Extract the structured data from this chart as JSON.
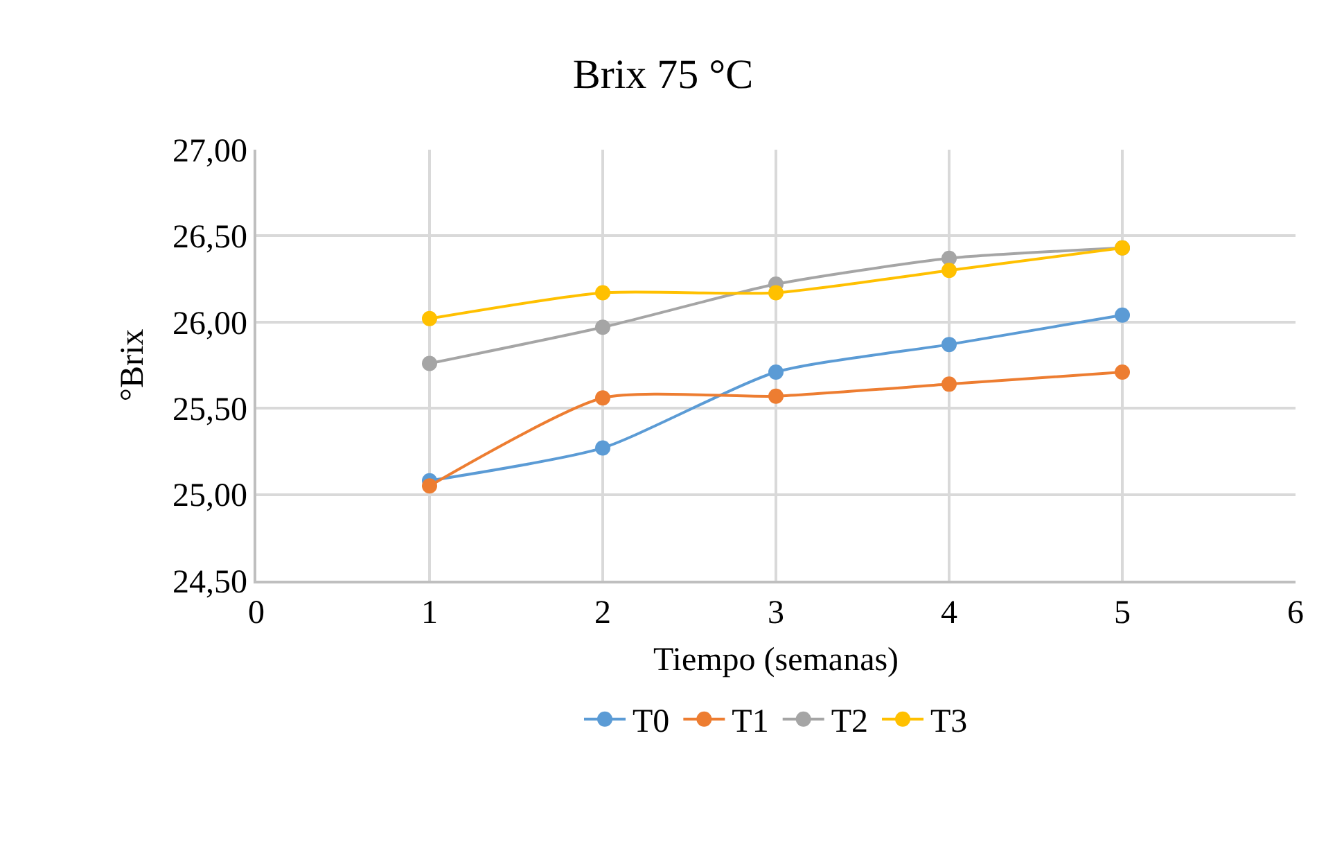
{
  "chart_data": {
    "type": "line",
    "title": "Brix 75 °C",
    "xlabel": "Tiempo (semanas)",
    "ylabel": "°Brix",
    "x": [
      1,
      2,
      3,
      4,
      5
    ],
    "series": [
      {
        "name": "T0",
        "color": "#5b9bd5",
        "values": [
          25.08,
          25.27,
          25.71,
          25.87,
          26.04
        ]
      },
      {
        "name": "T1",
        "color": "#ed7d31",
        "values": [
          25.05,
          25.56,
          25.57,
          25.64,
          25.71
        ]
      },
      {
        "name": "T2",
        "color": "#a5a5a5",
        "values": [
          25.76,
          25.97,
          26.22,
          26.37,
          26.43
        ]
      },
      {
        "name": "T3",
        "color": "#ffc000",
        "values": [
          26.02,
          26.17,
          26.17,
          26.3,
          26.43
        ]
      }
    ],
    "xlim": [
      0,
      6
    ],
    "xticks": [
      0,
      1,
      2,
      3,
      4,
      5,
      6
    ],
    "ylim": [
      24.5,
      27
    ],
    "yticks": [
      {
        "value": 24.5,
        "label": "24,50"
      },
      {
        "value": 25,
        "label": "25,00"
      },
      {
        "value": 25.5,
        "label": "25,50"
      },
      {
        "value": 26,
        "label": "26,00"
      },
      {
        "value": 26.5,
        "label": "26,50"
      },
      {
        "value": 27,
        "label": "27,00"
      }
    ],
    "grid": true,
    "legend": "bottom",
    "marker": "circle",
    "line_style": "solid"
  }
}
